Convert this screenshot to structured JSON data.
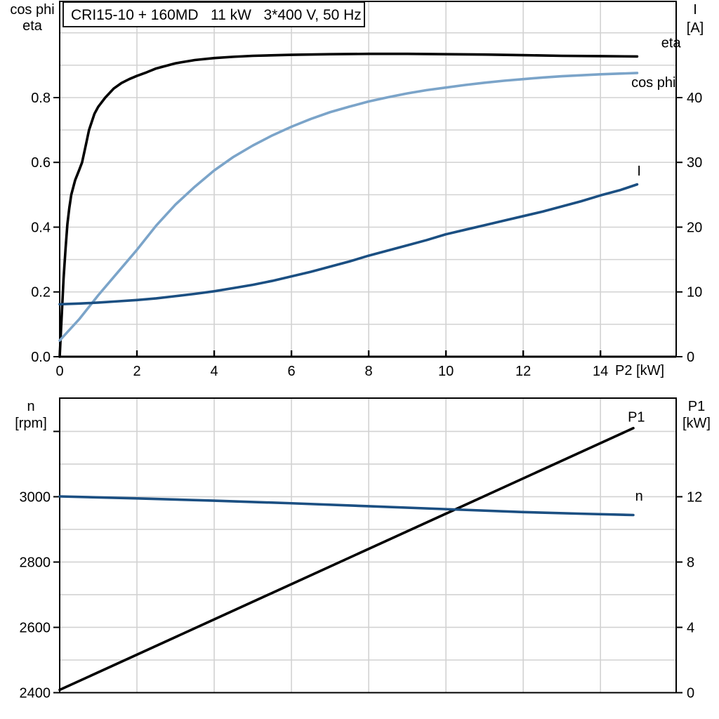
{
  "header": {
    "title": "CRI15-10 + 160MD   11 kW   3*400 V, 50 Hz"
  },
  "colors": {
    "black": "#000000",
    "dark_blue": "#1b4f82",
    "light_blue": "#7ba4c9",
    "grid": "#d2d2d2"
  },
  "chart_data": [
    {
      "type": "line",
      "title": "CRI15-10 + 160MD   11 kW   3*400 V, 50 Hz",
      "x_axis": {
        "label": "P2 [kW]",
        "min": 0,
        "max": 15.96,
        "grid_step": 2,
        "tick_values": [
          0,
          2,
          4,
          6,
          8,
          10,
          12,
          14
        ],
        "tick_labels": [
          "0",
          "2",
          "4",
          "6",
          "8",
          "10",
          "12",
          "14"
        ]
      },
      "y_left": {
        "unit_lines": [
          "cos phi",
          "eta"
        ],
        "min": 0,
        "max": 1.097,
        "tick_values": [
          0,
          0.2,
          0.4,
          0.6,
          0.8
        ],
        "tick_labels": [
          "0.0",
          "0.2",
          "0.4",
          "0.6",
          "0.8"
        ],
        "grid_values": [
          0.1,
          0.2,
          0.3,
          0.4,
          0.5,
          0.6,
          0.7,
          0.8,
          0.9,
          1.0
        ]
      },
      "y_right": {
        "unit_lines": [
          "I",
          "[A]"
        ],
        "min": 0,
        "max": 54.85,
        "tick_values": [
          0,
          10,
          20,
          30,
          40
        ],
        "tick_labels": [
          "0",
          "10",
          "20",
          "30",
          "40"
        ]
      },
      "series": [
        {
          "name": "eta",
          "label": "eta",
          "color": "#000000",
          "axis": "left",
          "label_at": [
            16.08,
            0.955
          ],
          "label_anchor": "end",
          "points": [
            [
              0,
              0
            ],
            [
              0.05,
              0.12
            ],
            [
              0.1,
              0.24
            ],
            [
              0.15,
              0.33
            ],
            [
              0.2,
              0.41
            ],
            [
              0.25,
              0.46
            ],
            [
              0.3,
              0.5
            ],
            [
              0.4,
              0.545
            ],
            [
              0.5,
              0.575
            ],
            [
              0.58,
              0.6
            ],
            [
              0.68,
              0.655
            ],
            [
              0.76,
              0.7
            ],
            [
              0.9,
              0.75
            ],
            [
              1.0,
              0.772
            ],
            [
              1.18,
              0.8
            ],
            [
              1.4,
              0.828
            ],
            [
              1.6,
              0.845
            ],
            [
              1.8,
              0.857
            ],
            [
              2.0,
              0.867
            ],
            [
              2.25,
              0.878
            ],
            [
              2.5,
              0.89
            ],
            [
              3.0,
              0.906
            ],
            [
              3.5,
              0.916
            ],
            [
              4.0,
              0.922
            ],
            [
              4.5,
              0.926
            ],
            [
              5.0,
              0.929
            ],
            [
              6.0,
              0.932
            ],
            [
              7.0,
              0.934
            ],
            [
              8.0,
              0.935
            ],
            [
              9.0,
              0.935
            ],
            [
              10.0,
              0.934
            ],
            [
              11.0,
              0.933
            ],
            [
              12.0,
              0.931
            ],
            [
              13.0,
              0.929
            ],
            [
              14.0,
              0.928
            ],
            [
              14.95,
              0.927
            ]
          ]
        },
        {
          "name": "cosphi",
          "label": "cos phi",
          "color": "#7ba4c9",
          "axis": "left",
          "label_at": [
            15.95,
            0.832
          ],
          "label_anchor": "end",
          "points": [
            [
              0,
              0.05
            ],
            [
              0.5,
              0.115
            ],
            [
              1,
              0.19
            ],
            [
              1.5,
              0.26
            ],
            [
              2,
              0.33
            ],
            [
              2.5,
              0.405
            ],
            [
              3,
              0.47
            ],
            [
              3.5,
              0.525
            ],
            [
              4,
              0.575
            ],
            [
              4.5,
              0.617
            ],
            [
              5,
              0.652
            ],
            [
              5.5,
              0.683
            ],
            [
              6,
              0.71
            ],
            [
              6.5,
              0.734
            ],
            [
              7,
              0.755
            ],
            [
              7.5,
              0.772
            ],
            [
              8,
              0.788
            ],
            [
              8.5,
              0.801
            ],
            [
              9,
              0.813
            ],
            [
              9.5,
              0.823
            ],
            [
              10,
              0.831
            ],
            [
              10.5,
              0.839
            ],
            [
              11,
              0.846
            ],
            [
              11.5,
              0.852
            ],
            [
              12,
              0.857
            ],
            [
              12.5,
              0.862
            ],
            [
              13,
              0.866
            ],
            [
              13.5,
              0.869
            ],
            [
              14,
              0.872
            ],
            [
              14.5,
              0.874
            ],
            [
              14.95,
              0.876
            ]
          ]
        },
        {
          "name": "I",
          "label": "I",
          "color": "#1b4f82",
          "axis": "right",
          "label_at": [
            15.0,
            27.95
          ],
          "label_anchor": "middle",
          "points": [
            [
              0,
              8.1
            ],
            [
              0.5,
              8.2
            ],
            [
              1,
              8.35
            ],
            [
              1.5,
              8.55
            ],
            [
              2,
              8.75
            ],
            [
              2.5,
              9.0
            ],
            [
              3,
              9.35
            ],
            [
              3.5,
              9.7
            ],
            [
              4,
              10.1
            ],
            [
              4.5,
              10.6
            ],
            [
              5,
              11.1
            ],
            [
              5.5,
              11.7
            ],
            [
              6,
              12.4
            ],
            [
              6.5,
              13.1
            ],
            [
              7,
              13.9
            ],
            [
              7.5,
              14.7
            ],
            [
              8,
              15.6
            ],
            [
              8.5,
              16.4
            ],
            [
              9,
              17.2
            ],
            [
              9.5,
              18.0
            ],
            [
              10,
              18.9
            ],
            [
              10.5,
              19.6
            ],
            [
              11,
              20.3
            ],
            [
              11.5,
              21.0
            ],
            [
              12,
              21.7
            ],
            [
              12.5,
              22.4
            ],
            [
              13,
              23.2
            ],
            [
              13.5,
              24.0
            ],
            [
              14,
              24.9
            ],
            [
              14.5,
              25.7
            ],
            [
              14.95,
              26.6
            ]
          ]
        }
      ]
    },
    {
      "type": "line",
      "title": "",
      "x_axis": {
        "label": "",
        "min": 0,
        "max": 15.96,
        "grid_step": 2,
        "tick_values": [],
        "tick_labels": []
      },
      "y_left": {
        "unit_lines": [
          "n",
          "[rpm]"
        ],
        "min": 2400,
        "max": 3302,
        "tick_values": [
          2400,
          2600,
          2800,
          3000,
          3200
        ],
        "tick_labels": [
          "2400",
          "2600",
          "2800",
          "3000",
          ""
        ],
        "grid_values": [
          2500,
          2600,
          2700,
          2800,
          2900,
          3000,
          3100,
          3200
        ]
      },
      "y_right": {
        "unit_lines": [
          "P1",
          "[kW]"
        ],
        "min": 0,
        "max": 18.04,
        "tick_values": [
          0,
          4,
          8,
          12
        ],
        "tick_labels": [
          "0",
          "4",
          "8",
          "12"
        ]
      },
      "series": [
        {
          "name": "P1",
          "label": "P1",
          "color": "#000000",
          "axis": "right",
          "label_at": [
            14.93,
            16.6
          ],
          "label_anchor": "middle",
          "points": [
            [
              0,
              0.17
            ],
            [
              14.85,
              16.2
            ]
          ]
        },
        {
          "name": "n",
          "label": "n",
          "color": "#1b4f82",
          "axis": "left",
          "label_at": [
            15.0,
            2988
          ],
          "label_anchor": "middle",
          "points": [
            [
              0,
              3001
            ],
            [
              2,
              2995
            ],
            [
              4,
              2988
            ],
            [
              6,
              2980
            ],
            [
              8,
              2971
            ],
            [
              10,
              2962
            ],
            [
              12,
              2953
            ],
            [
              13.5,
              2948
            ],
            [
              14.85,
              2944
            ]
          ]
        }
      ]
    }
  ]
}
